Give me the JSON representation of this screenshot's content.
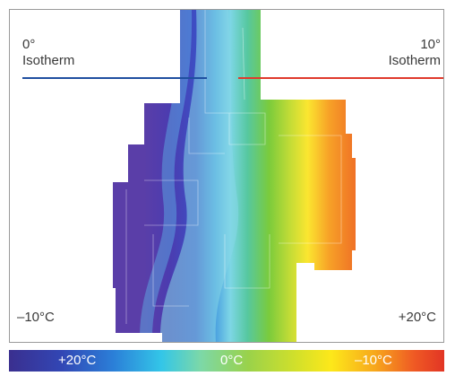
{
  "isotherm_left": {
    "degree": "0°",
    "name": "Isotherm"
  },
  "isotherm_right": {
    "degree": "10°",
    "name": "Isotherm"
  },
  "temp_left": "–10°C",
  "temp_right": "+20°C",
  "scale": {
    "left": "+20°C",
    "middle": "0°C",
    "right": "–10°C"
  },
  "colors": {
    "isotherm_0": "#1f4fa0",
    "isotherm_10": "#e03a2c",
    "frame": "#9a9a9a"
  }
}
